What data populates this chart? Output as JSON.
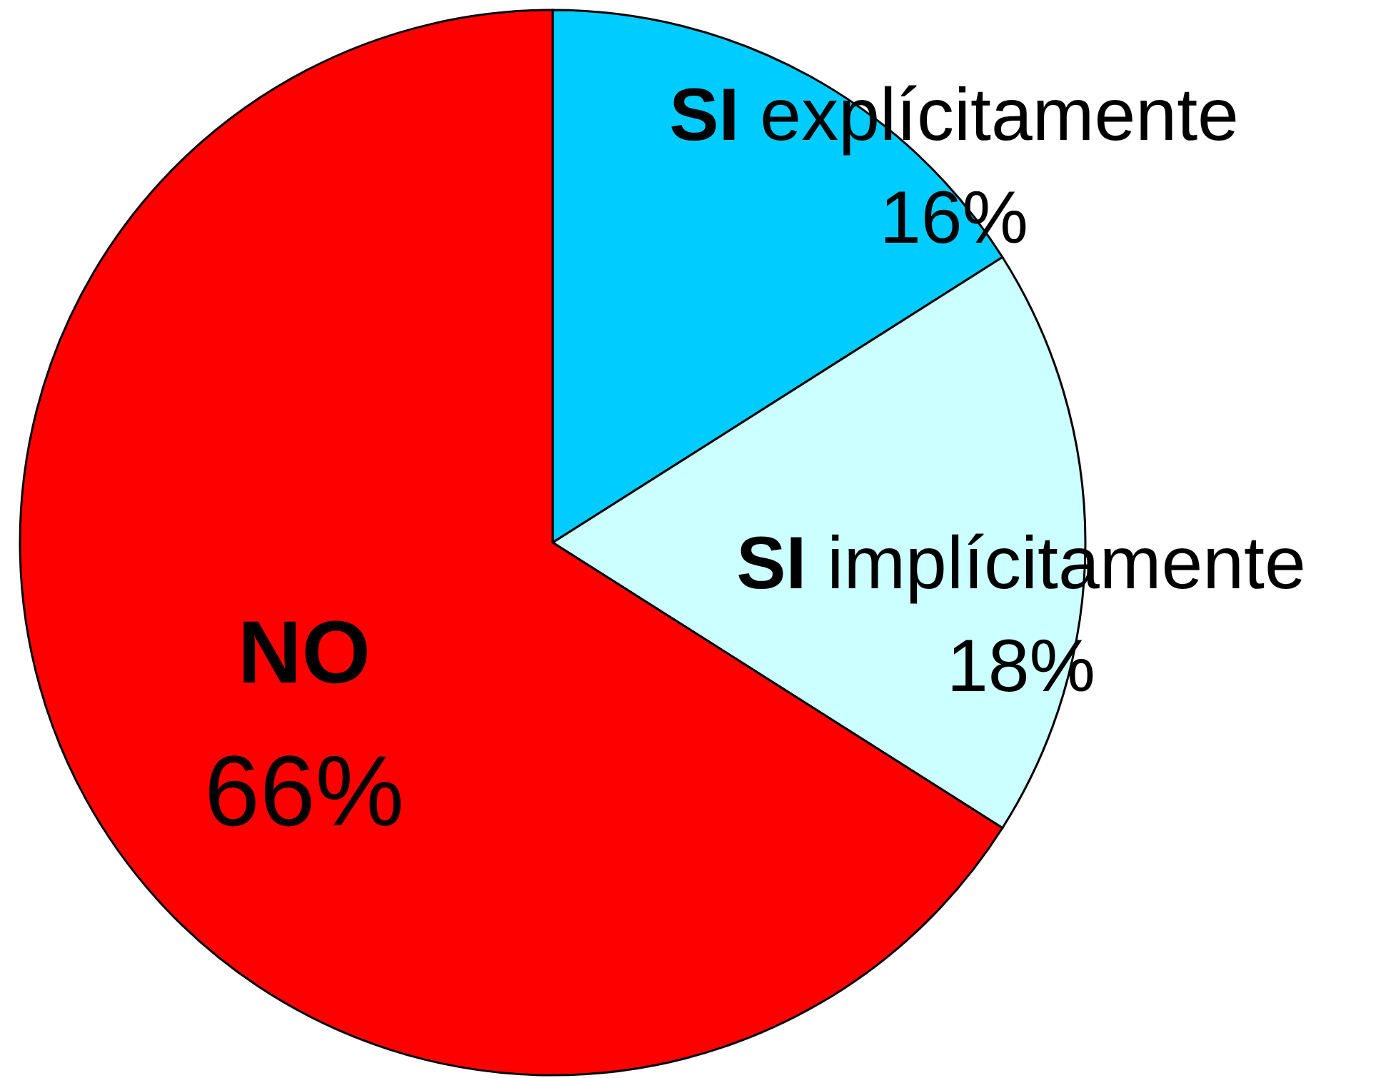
{
  "chart_data": {
    "type": "pie",
    "categories": [
      "SI explícitamente",
      "SI implícitamente",
      "NO"
    ],
    "values": [
      16,
      18,
      66
    ],
    "colors": [
      "#00ccff",
      "#ccffff",
      "#ff0000"
    ],
    "value_labels": [
      "16%",
      "18%",
      "66%"
    ],
    "legend": false
  }
}
